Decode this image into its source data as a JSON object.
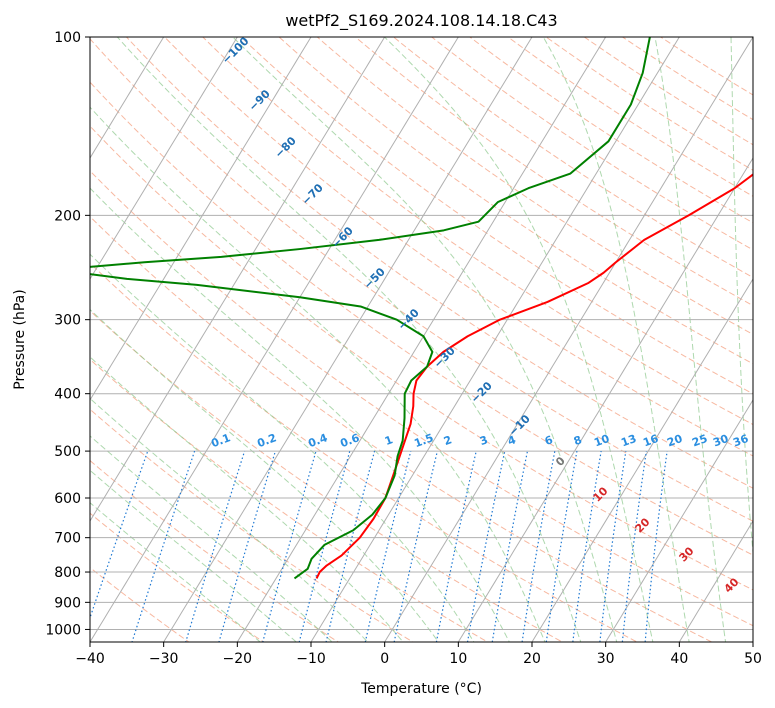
{
  "chart_data": {
    "type": "line",
    "title": "wetPf2_S169.2024.108.14.18.C43",
    "xlabel": "Temperature (°C)",
    "ylabel": "Pressure (hPa)",
    "xlim": [
      -40,
      50
    ],
    "ylim": [
      1050,
      100
    ],
    "yscale": "log",
    "grid": true,
    "x_ticks": [
      "−40",
      "−30",
      "−20",
      "−10",
      "0",
      "10",
      "20",
      "30",
      "40",
      "50"
    ],
    "y_ticks": [
      "100",
      "200",
      "300",
      "400",
      "500",
      "600",
      "700",
      "800",
      "900",
      "1000"
    ],
    "series": [
      {
        "role": "temperature",
        "color": "#ff0000",
        "points": [
          {
            "p": 820,
            "t": -14.5
          },
          {
            "p": 800,
            "t": -14.6
          },
          {
            "p": 780,
            "t": -14.2
          },
          {
            "p": 750,
            "t": -13.0
          },
          {
            "p": 700,
            "t": -12.0
          },
          {
            "p": 650,
            "t": -11.7
          },
          {
            "p": 600,
            "t": -11.8
          },
          {
            "p": 550,
            "t": -12.6
          },
          {
            "p": 500,
            "t": -13.5
          },
          {
            "p": 450,
            "t": -14.5
          },
          {
            "p": 420,
            "t": -15.6
          },
          {
            "p": 400,
            "t": -16.6
          },
          {
            "p": 380,
            "t": -17.3
          },
          {
            "p": 360,
            "t": -17.0
          },
          {
            "p": 340,
            "t": -16.0
          },
          {
            "p": 320,
            "t": -14.0
          },
          {
            "p": 300,
            "t": -11.0
          },
          {
            "p": 280,
            "t": -6.0
          },
          {
            "p": 260,
            "t": -2.0
          },
          {
            "p": 250,
            "t": -0.8
          },
          {
            "p": 240,
            "t": 0.0
          },
          {
            "p": 220,
            "t": 2.0
          },
          {
            "p": 200,
            "t": 6.0
          },
          {
            "p": 180,
            "t": 10.0
          },
          {
            "p": 160,
            "t": 13.0
          },
          {
            "p": 140,
            "t": 15.5
          },
          {
            "p": 120,
            "t": 19.0
          },
          {
            "p": 100,
            "t": 25.0
          }
        ]
      },
      {
        "role": "dewpoint",
        "color": "#008000",
        "points": [
          {
            "p": 820,
            "t": -17.5
          },
          {
            "p": 790,
            "t": -16.5
          },
          {
            "p": 760,
            "t": -16.8
          },
          {
            "p": 720,
            "t": -16.2
          },
          {
            "p": 680,
            "t": -13.5
          },
          {
            "p": 640,
            "t": -12.2
          },
          {
            "p": 600,
            "t": -11.8
          },
          {
            "p": 550,
            "t": -12.4
          },
          {
            "p": 510,
            "t": -13.6
          },
          {
            "p": 480,
            "t": -14.2
          },
          {
            "p": 440,
            "t": -15.8
          },
          {
            "p": 400,
            "t": -17.8
          },
          {
            "p": 380,
            "t": -18.0
          },
          {
            "p": 360,
            "t": -17.0
          },
          {
            "p": 340,
            "t": -17.5
          },
          {
            "p": 320,
            "t": -20.0
          },
          {
            "p": 300,
            "t": -25.0
          },
          {
            "p": 285,
            "t": -31.0
          },
          {
            "p": 275,
            "t": -40.0
          },
          {
            "p": 262,
            "t": -55.0
          },
          {
            "p": 256,
            "t": -65.0
          },
          {
            "p": 250,
            "t": -72.0
          },
          {
            "p": 245,
            "t": -72.0
          },
          {
            "p": 240,
            "t": -64.0
          },
          {
            "p": 235,
            "t": -54.0
          },
          {
            "p": 228,
            "t": -44.0
          },
          {
            "p": 220,
            "t": -34.0
          },
          {
            "p": 212,
            "t": -26.0
          },
          {
            "p": 205,
            "t": -22.0
          },
          {
            "p": 190,
            "t": -21.0
          },
          {
            "p": 180,
            "t": -18.0
          },
          {
            "p": 170,
            "t": -13.5
          },
          {
            "p": 150,
            "t": -11.0
          },
          {
            "p": 130,
            "t": -11.0
          },
          {
            "p": 115,
            "t": -12.0
          },
          {
            "p": 100,
            "t": -14.0
          }
        ]
      }
    ],
    "dry_adiabat_labels": [
      "−100",
      "−90",
      "−80",
      "−70",
      "−60",
      "−50",
      "−40",
      "−30",
      "−20",
      "−10"
    ],
    "mixing_ratio_labels": [
      "0.1",
      "0.2",
      "0.4",
      "0.6",
      "1",
      "1.5",
      "2",
      "3",
      "4",
      "6",
      "8",
      "10",
      "13",
      "16",
      "20",
      "25",
      "30",
      "36"
    ],
    "moist_adiabat_labels": [
      "0",
      "10",
      "20",
      "30",
      "40"
    ],
    "colors": {
      "temperature": "#ff0000",
      "dewpoint": "#008000",
      "dry_adiabat": "#f4a080",
      "moist_adiabat": "#8cc88c",
      "mixing_ratio": "#1e78d2",
      "dry_label": "#1f6fb4",
      "mixing_label": "#2a8ee0",
      "moist_label": "#d62728",
      "grid": "#b0b0b0"
    }
  }
}
